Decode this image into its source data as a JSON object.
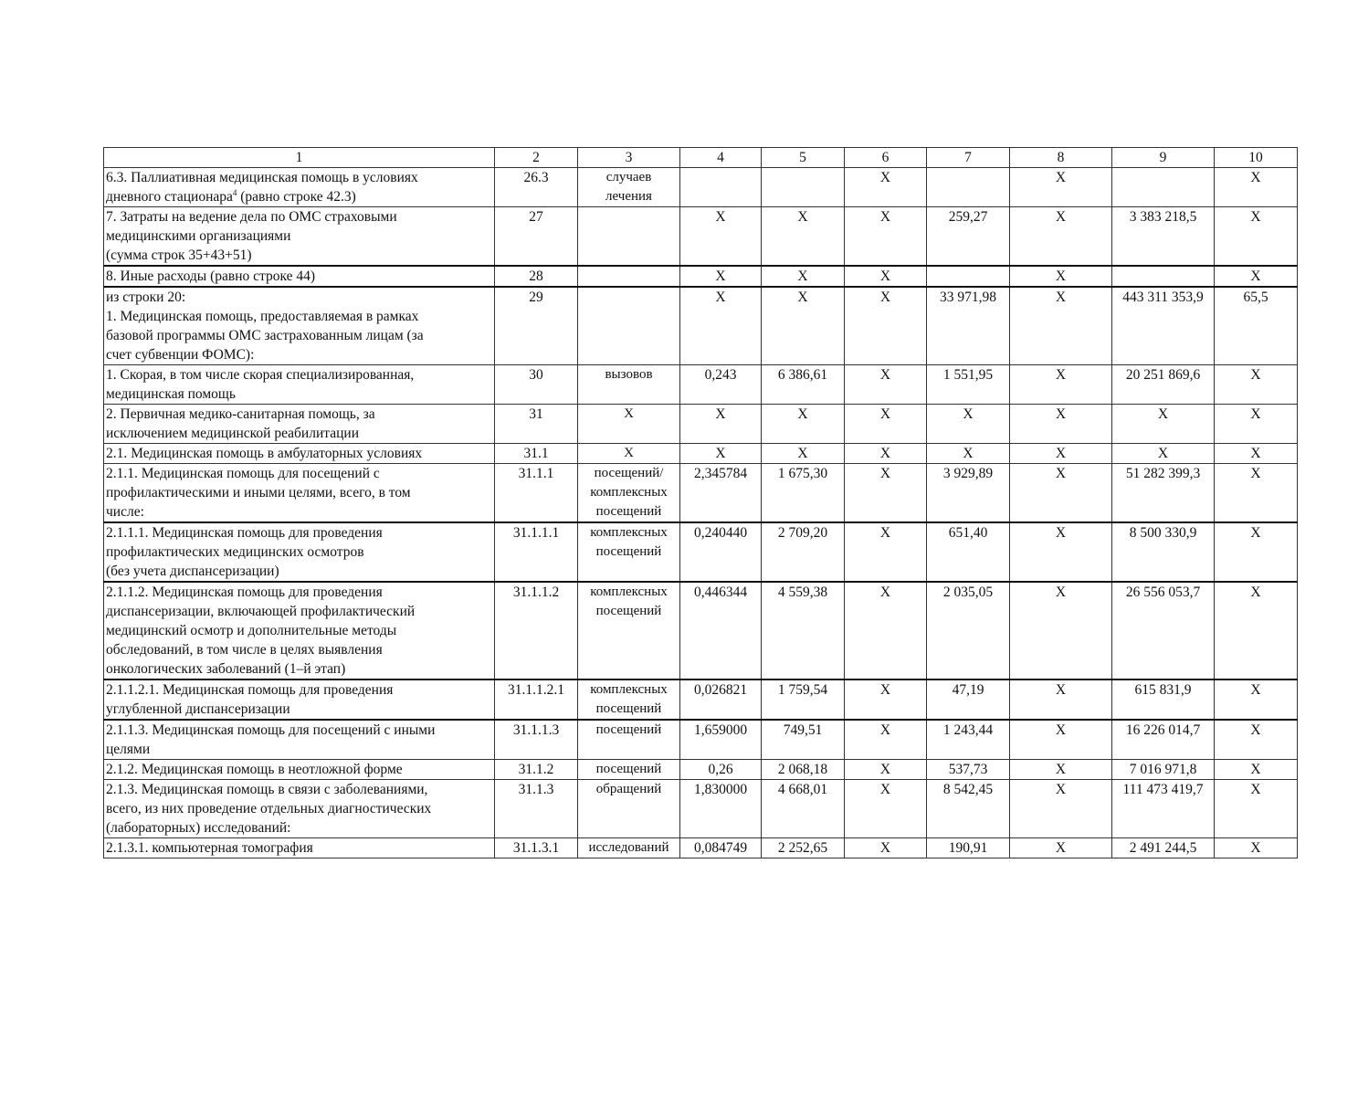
{
  "header": [
    "1",
    "2",
    "3",
    "4",
    "5",
    "6",
    "7",
    "8",
    "9",
    "10"
  ],
  "rows": [
    {
      "name_pre": "6.3. Паллиативная медицинская помощь в условиях\nдневного стационара",
      "name_sup": "4",
      "name_post": " (равно строке 42.3)",
      "cells": [
        "26.3",
        "случаев\nлечения",
        "",
        "",
        "X",
        "",
        "X",
        "",
        "X"
      ]
    },
    {
      "name": "7. Затраты на ведение дела по ОМС страховыми\nмедицинскими организациями\n(сумма строк 35+43+51)",
      "cells": [
        "27",
        "",
        "X",
        "X",
        "X",
        "259,27",
        "X",
        "3 383 218,5",
        "X"
      ]
    },
    {
      "name": "8. Иные расходы (равно строке 44)",
      "cells": [
        "28",
        "",
        "X",
        "X",
        "X",
        "",
        "X",
        "",
        "X"
      ]
    },
    {
      "name": "из строки 20:\n1. Медицинская помощь, предоставляемая в рамках\nбазовой программы ОМС застрахованным лицам (за\nсчет субвенции ФОМС):",
      "cells": [
        "29",
        "",
        "X",
        "X",
        "X",
        "33 971,98",
        "X",
        "443 311 353,9",
        "65,5"
      ]
    },
    {
      "name": "1. Скорая, в том числе скорая специализированная,\nмедицинская помощь",
      "cells": [
        "30",
        "вызовов",
        "0,243",
        "6 386,61",
        "X",
        "1 551,95",
        "X",
        "20 251 869,6",
        "X"
      ]
    },
    {
      "name": "2. Первичная медико-санитарная помощь, за\nисключением медицинской реабилитации",
      "cells": [
        "31",
        "X",
        "X",
        "X",
        "X",
        "X",
        "X",
        "X",
        "X"
      ]
    },
    {
      "name": "2.1. Медицинская помощь в амбулаторных условиях",
      "cells": [
        "31.1",
        "X",
        "X",
        "X",
        "X",
        "X",
        "X",
        "X",
        "X"
      ]
    },
    {
      "name": "2.1.1. Медицинская помощь для посещений с\nпрофилактическими и иными целями, всего, в том\nчисле:",
      "cells": [
        "31.1.1",
        "посещений/\nкомплексных\nпосещений",
        "2,345784",
        "1 675,30",
        "X",
        "3 929,89",
        "X",
        "51 282 399,3",
        "X"
      ]
    },
    {
      "name": "2.1.1.1. Медицинская помощь для проведения\nпрофилактических медицинских осмотров\n(без учета диспансеризации)",
      "cells": [
        "31.1.1.1",
        "комплексных\nпосещений",
        "0,240440",
        "2 709,20",
        "X",
        "651,40",
        "X",
        "8 500 330,9",
        "X"
      ]
    },
    {
      "name": "2.1.1.2. Медицинская помощь для проведения\nдиспансеризации, включающей профилактический\nмедицинский осмотр и дополнительные методы\nобследований, в том числе в целях выявления\nонкологических заболеваний (1–й этап)",
      "cells": [
        "31.1.1.2",
        "комплексных\nпосещений",
        "0,446344",
        "4 559,38",
        "X",
        "2 035,05",
        "X",
        "26 556 053,7",
        "X"
      ]
    },
    {
      "name": "2.1.1.2.1. Медицинская помощь для проведения\nуглубленной диспансеризации",
      "cells": [
        "31.1.1.2.1",
        "комплексных\nпосещений",
        "0,026821",
        "1 759,54",
        "X",
        "47,19",
        "X",
        "615 831,9",
        "X"
      ]
    },
    {
      "name": "2.1.1.3. Медицинская помощь для посещений с иными\nцелями",
      "cells": [
        "31.1.1.3",
        "посещений",
        "1,659000",
        "749,51",
        "X",
        "1 243,44",
        "X",
        "16 226 014,7",
        "X"
      ]
    },
    {
      "name": "2.1.2. Медицинская помощь в неотложной форме",
      "cells": [
        "31.1.2",
        "посещений",
        "0,26",
        "2 068,18",
        "X",
        "537,73",
        "X",
        "7 016 971,8",
        "X"
      ]
    },
    {
      "name": "2.1.3. Медицинская помощь в связи с заболеваниями,\nвсего, из них проведение отдельных диагностических\n(лабораторных) исследований:",
      "cells": [
        "31.1.3",
        "обращений",
        "1,830000",
        "4 668,01",
        "X",
        "8 542,45",
        "X",
        "111 473 419,7",
        "X"
      ]
    },
    {
      "name": "2.1.3.1. компьютерная томография",
      "cells": [
        "31.1.3.1",
        "исследований",
        "0,084749",
        "2 252,65",
        "X",
        "190,91",
        "X",
        "2 491 244,5",
        "X"
      ]
    }
  ]
}
